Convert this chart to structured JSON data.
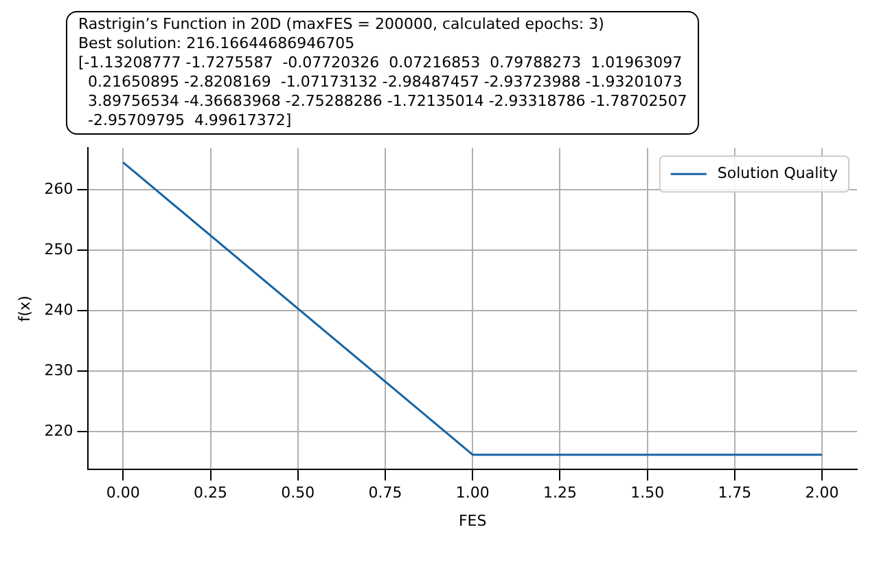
{
  "chart_data": {
    "type": "line",
    "title": "Rastrigin’s Function in 20D (maxFES = 200000, calculated epochs: 3)",
    "annotations": [
      "Best solution: 216.16644686946705",
      "[-1.13208777 -1.7275587  -0.07720326  0.07216853  0.79788273  1.01963097",
      "  0.21650895 -2.8208169  -1.07173132 -2.98487457 -2.93723988 -1.93201073",
      "  3.89756534 -4.36683968 -2.75288286 -1.72135014 -2.93318786 -1.78702507",
      "  -2.95709795  4.99617372]"
    ],
    "xlabel": "FES",
    "ylabel": "f(x)",
    "x": [
      0,
      1,
      2
    ],
    "series": [
      {
        "name": "Solution Quality",
        "color": "#1765a5",
        "values": [
          264.5,
          216.2,
          216.2
        ]
      }
    ],
    "xlim": [
      -0.1,
      2.1
    ],
    "ylim": [
      213.75,
      266.9
    ],
    "xticks": [
      {
        "value": 0,
        "label": "0.00"
      },
      {
        "value": 0.25,
        "label": "0.25"
      },
      {
        "value": 0.5,
        "label": "0.50"
      },
      {
        "value": 0.75,
        "label": "0.75"
      },
      {
        "value": 1,
        "label": "1.00"
      },
      {
        "value": 1.25,
        "label": "1.25"
      },
      {
        "value": 1.5,
        "label": "1.50"
      },
      {
        "value": 1.75,
        "label": "1.75"
      },
      {
        "value": 2,
        "label": "2.00"
      }
    ],
    "yticks": [
      220,
      230,
      240,
      250,
      260
    ],
    "grid": true,
    "legend": "top right",
    "marker": "none",
    "line_style": "solid"
  }
}
